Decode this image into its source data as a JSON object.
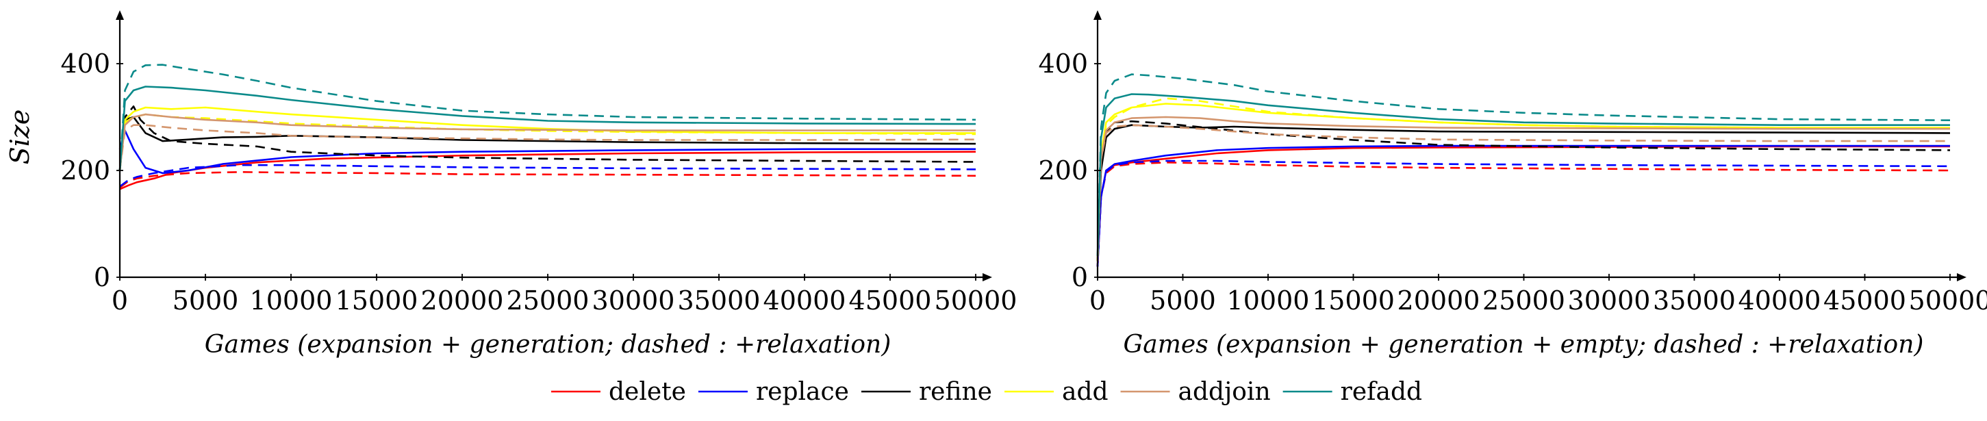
{
  "chart_data": [
    {
      "type": "line",
      "ylabel": "Size",
      "xlabel": "Games (expansion + generation;  dashed : +relaxation)",
      "xlim": [
        0,
        50000
      ],
      "ylim": [
        0,
        500
      ],
      "xticks": [
        "0",
        "5000",
        "10000",
        "15000",
        "20000",
        "25000",
        "30000",
        "35000",
        "40000",
        "45000",
        "50000"
      ],
      "yticks": [
        "0",
        "200",
        "400"
      ],
      "series": [
        {
          "name": "delete",
          "color": "#ff0000",
          "dash": false,
          "x": [
            0,
            500,
            1000,
            2000,
            3000,
            5000,
            8000,
            12000,
            20000,
            30000,
            40000,
            50000
          ],
          "y": [
            165,
            172,
            178,
            185,
            195,
            205,
            215,
            222,
            228,
            232,
            234,
            235
          ]
        },
        {
          "name": "delete",
          "color": "#ff0000",
          "dash": true,
          "x": [
            0,
            500,
            1000,
            2000,
            4000,
            7000,
            10000,
            15000,
            20000,
            30000,
            40000,
            50000
          ],
          "y": [
            168,
            180,
            185,
            190,
            195,
            197,
            196,
            195,
            193,
            192,
            191,
            190
          ]
        },
        {
          "name": "replace",
          "color": "#0000ff",
          "dash": false,
          "x": [
            0,
            300,
            800,
            1500,
            2500,
            4000,
            6000,
            10000,
            15000,
            20000,
            30000,
            40000,
            50000
          ],
          "y": [
            240,
            275,
            240,
            205,
            195,
            200,
            212,
            225,
            232,
            235,
            238,
            240,
            240
          ]
        },
        {
          "name": "replace",
          "color": "#0000ff",
          "dash": true,
          "x": [
            0,
            500,
            1000,
            2000,
            4000,
            7000,
            10000,
            15000,
            20000,
            30000,
            40000,
            50000
          ],
          "y": [
            170,
            182,
            188,
            195,
            205,
            210,
            210,
            208,
            206,
            204,
            203,
            202
          ]
        },
        {
          "name": "refine",
          "color": "#000000",
          "dash": false,
          "x": [
            0,
            300,
            800,
            1500,
            2500,
            4000,
            6000,
            8000,
            10000,
            15000,
            20000,
            30000,
            40000,
            50000
          ],
          "y": [
            200,
            295,
            300,
            270,
            255,
            258,
            262,
            263,
            265,
            262,
            257,
            253,
            251,
            250
          ]
        },
        {
          "name": "refine",
          "color": "#000000",
          "dash": true,
          "x": [
            0,
            300,
            800,
            1200,
            2000,
            3000,
            5000,
            8000,
            10000,
            15000,
            20000,
            30000,
            40000,
            50000
          ],
          "y": [
            200,
            300,
            320,
            295,
            270,
            255,
            250,
            245,
            235,
            228,
            224,
            220,
            218,
            216
          ]
        },
        {
          "name": "add",
          "color": "#ffff00",
          "dash": false,
          "x": [
            0,
            300,
            800,
            1500,
            3000,
            5000,
            8000,
            10000,
            15000,
            20000,
            25000,
            30000,
            40000,
            50000
          ],
          "y": [
            200,
            295,
            310,
            318,
            315,
            318,
            310,
            305,
            295,
            285,
            278,
            273,
            270,
            270
          ]
        },
        {
          "name": "add",
          "color": "#ffff00",
          "dash": true,
          "x": [
            0,
            300,
            800,
            1500,
            3000,
            5000,
            8000,
            10000,
            15000,
            20000,
            25000,
            30000,
            40000,
            50000
          ],
          "y": [
            200,
            290,
            300,
            305,
            300,
            298,
            292,
            288,
            282,
            277,
            274,
            272,
            270,
            268
          ]
        },
        {
          "name": "addjoin",
          "color": "#d4966e",
          "dash": false,
          "x": [
            0,
            300,
            800,
            1500,
            3000,
            5000,
            8000,
            10000,
            15000,
            20000,
            25000,
            30000,
            40000,
            50000
          ],
          "y": [
            200,
            285,
            300,
            305,
            300,
            295,
            290,
            285,
            280,
            277,
            276,
            275,
            275,
            275
          ]
        },
        {
          "name": "addjoin",
          "color": "#d4966e",
          "dash": true,
          "x": [
            0,
            300,
            800,
            1500,
            3000,
            5000,
            8000,
            10000,
            15000,
            20000,
            25000,
            30000,
            40000,
            50000
          ],
          "y": [
            200,
            275,
            285,
            285,
            280,
            275,
            270,
            265,
            262,
            260,
            258,
            257,
            257,
            258
          ]
        },
        {
          "name": "refadd",
          "color": "#0a8a8a",
          "dash": false,
          "x": [
            0,
            300,
            800,
            1500,
            3000,
            5000,
            8000,
            10000,
            15000,
            20000,
            25000,
            30000,
            40000,
            50000
          ],
          "y": [
            200,
            330,
            350,
            357,
            355,
            350,
            340,
            332,
            315,
            302,
            293,
            290,
            288,
            287
          ]
        },
        {
          "name": "refadd",
          "color": "#0a8a8a",
          "dash": true,
          "x": [
            0,
            300,
            800,
            1500,
            2500,
            4000,
            6000,
            8000,
            10000,
            15000,
            20000,
            25000,
            30000,
            40000,
            50000
          ],
          "y": [
            200,
            350,
            385,
            397,
            398,
            390,
            380,
            368,
            355,
            330,
            312,
            305,
            300,
            297,
            295
          ]
        }
      ]
    },
    {
      "type": "line",
      "xlabel": "Games (expansion + generation + empty;  dashed : +relaxation)",
      "xlim": [
        0,
        50000
      ],
      "ylim": [
        0,
        500
      ],
      "xticks": [
        "0",
        "5000",
        "10000",
        "15000",
        "20000",
        "25000",
        "30000",
        "35000",
        "40000",
        "45000",
        "50000"
      ],
      "yticks": [
        "0",
        "200",
        "400"
      ],
      "series": [
        {
          "name": "delete",
          "color": "#ff0000",
          "dash": false,
          "x": [
            0,
            200,
            500,
            1000,
            2000,
            4000,
            7000,
            10000,
            15000,
            20000,
            30000,
            40000,
            50000
          ],
          "y": [
            20,
            150,
            200,
            210,
            215,
            222,
            232,
            238,
            242,
            243,
            244,
            245,
            245
          ]
        },
        {
          "name": "delete",
          "color": "#ff0000",
          "dash": true,
          "x": [
            0,
            200,
            500,
            1000,
            2000,
            4000,
            7000,
            10000,
            15000,
            20000,
            30000,
            40000,
            50000
          ],
          "y": [
            20,
            150,
            195,
            208,
            212,
            215,
            213,
            210,
            207,
            205,
            203,
            201,
            200
          ]
        },
        {
          "name": "replace",
          "color": "#0000ff",
          "dash": false,
          "x": [
            0,
            200,
            500,
            1000,
            2000,
            4000,
            7000,
            10000,
            15000,
            20000,
            30000,
            40000,
            50000
          ],
          "y": [
            20,
            150,
            200,
            212,
            218,
            228,
            238,
            242,
            245,
            246,
            246,
            246,
            246
          ]
        },
        {
          "name": "replace",
          "color": "#0000ff",
          "dash": true,
          "x": [
            0,
            200,
            500,
            1000,
            2000,
            4000,
            7000,
            10000,
            15000,
            20000,
            30000,
            40000,
            50000
          ],
          "y": [
            20,
            150,
            198,
            210,
            215,
            218,
            218,
            216,
            214,
            212,
            210,
            209,
            208
          ]
        },
        {
          "name": "refine",
          "color": "#000000",
          "dash": false,
          "x": [
            0,
            200,
            500,
            1000,
            2000,
            4000,
            6000,
            8000,
            10000,
            15000,
            20000,
            30000,
            40000,
            50000
          ],
          "y": [
            30,
            200,
            262,
            278,
            285,
            282,
            280,
            282,
            280,
            276,
            273,
            272,
            271,
            270
          ]
        },
        {
          "name": "refine",
          "color": "#000000",
          "dash": true,
          "x": [
            0,
            200,
            500,
            1000,
            2000,
            4000,
            7000,
            10000,
            15000,
            20000,
            30000,
            40000,
            50000
          ],
          "y": [
            30,
            210,
            272,
            290,
            292,
            288,
            278,
            268,
            257,
            248,
            243,
            240,
            238
          ]
        },
        {
          "name": "add",
          "color": "#ffff00",
          "dash": false,
          "x": [
            0,
            200,
            500,
            1000,
            2000,
            4000,
            6000,
            8000,
            10000,
            15000,
            20000,
            25000,
            30000,
            40000,
            50000
          ],
          "y": [
            30,
            230,
            290,
            305,
            318,
            325,
            322,
            315,
            308,
            298,
            290,
            285,
            282,
            280,
            280
          ]
        },
        {
          "name": "add",
          "color": "#ffff00",
          "dash": true,
          "x": [
            0,
            200,
            500,
            1000,
            2000,
            4000,
            6000,
            8000,
            10000,
            15000,
            20000,
            25000,
            30000,
            40000,
            50000
          ],
          "y": [
            30,
            230,
            285,
            300,
            318,
            335,
            330,
            320,
            310,
            298,
            290,
            285,
            282,
            280,
            279
          ]
        },
        {
          "name": "addjoin",
          "color": "#d4966e",
          "dash": false,
          "x": [
            0,
            200,
            500,
            1000,
            2000,
            4000,
            6000,
            8000,
            10000,
            15000,
            20000,
            30000,
            40000,
            50000
          ],
          "y": [
            30,
            220,
            275,
            290,
            298,
            300,
            298,
            292,
            288,
            283,
            280,
            279,
            278,
            278
          ]
        },
        {
          "name": "addjoin",
          "color": "#d4966e",
          "dash": true,
          "x": [
            0,
            200,
            500,
            1000,
            2000,
            4000,
            6000,
            8000,
            10000,
            15000,
            20000,
            30000,
            40000,
            50000
          ],
          "y": [
            30,
            220,
            270,
            282,
            285,
            282,
            278,
            273,
            268,
            262,
            258,
            256,
            255,
            255
          ]
        },
        {
          "name": "refadd",
          "color": "#0a8a8a",
          "dash": false,
          "x": [
            0,
            200,
            500,
            1000,
            2000,
            3000,
            5000,
            8000,
            10000,
            15000,
            20000,
            25000,
            30000,
            40000,
            50000
          ],
          "y": [
            40,
            260,
            318,
            335,
            343,
            342,
            338,
            330,
            322,
            308,
            296,
            290,
            288,
            285,
            285
          ]
        },
        {
          "name": "refadd",
          "color": "#0a8a8a",
          "dash": true,
          "x": [
            0,
            200,
            500,
            1000,
            2000,
            3000,
            5000,
            8000,
            10000,
            15000,
            20000,
            25000,
            30000,
            40000,
            50000
          ],
          "y": [
            40,
            280,
            345,
            368,
            380,
            378,
            372,
            360,
            348,
            330,
            315,
            308,
            303,
            296,
            294
          ]
        }
      ]
    }
  ],
  "legend": [
    {
      "label": "delete",
      "color": "#ff0000"
    },
    {
      "label": "replace",
      "color": "#0000ff"
    },
    {
      "label": "refine",
      "color": "#000000"
    },
    {
      "label": "add",
      "color": "#ffff00"
    },
    {
      "label": "addjoin",
      "color": "#d4966e"
    },
    {
      "label": "refadd",
      "color": "#0a8a8a"
    }
  ]
}
